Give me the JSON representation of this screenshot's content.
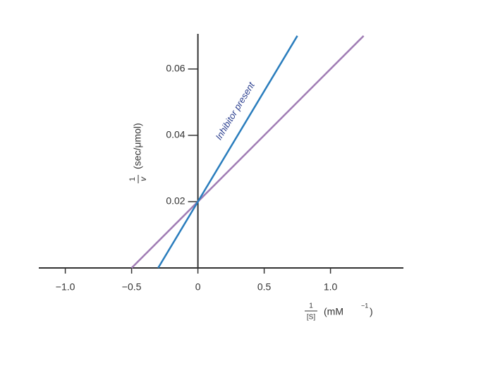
{
  "chart_data": {
    "type": "line",
    "series": [
      {
        "color": "#a07cb4",
        "x": [
          -0.5,
          1.25
        ],
        "values": [
          0,
          0.07
        ]
      },
      {
        "color": "#2a7dbd",
        "x": [
          -0.3,
          0.75
        ],
        "values": [
          0,
          0.07
        ]
      }
    ],
    "xlim": [
      -1.2,
      1.55
    ],
    "ylim": [
      0,
      0.0706
    ],
    "xticks": [
      {
        "value": -1.0,
        "label": "−1.0"
      },
      {
        "value": -0.5,
        "label": "−0.5"
      },
      0,
      0.5,
      {
        "value": 1.0,
        "label": "1.0"
      }
    ],
    "yticks": [
      0.02,
      0.04,
      0.06
    ],
    "annotation": "Inhibitor present",
    "y_label": {
      "numerator": "1",
      "denominator": "v",
      "unit": "(sec/μmol)"
    },
    "x_label": {
      "numerator": "1",
      "denominator": "[S]",
      "unit": "(mM",
      "exponent": "−1",
      "close": ")"
    }
  }
}
